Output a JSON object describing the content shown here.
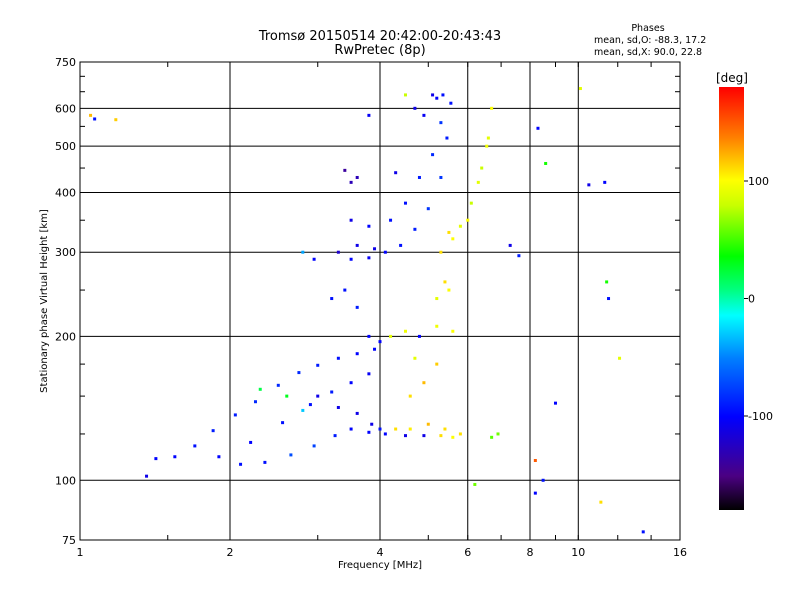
{
  "chart_data": {
    "type": "scatter",
    "title": "Tromsø 20150514 20:42:00-20:43:43",
    "subtitle": "RwPretec (8p)",
    "xlabel": "Frequency [MHz]",
    "ylabel": "Stationary phase Virtual Height [km]",
    "x_scale": "log",
    "y_scale": "log",
    "xlim": [
      1,
      16
    ],
    "ylim": [
      75,
      750
    ],
    "x_ticks": [
      "1",
      "2",
      "4",
      "6",
      "8",
      "10",
      "16"
    ],
    "x_tick_values": [
      1,
      2,
      4,
      6,
      8,
      10,
      16
    ],
    "y_ticks": [
      "75",
      "100",
      "200",
      "300",
      "400",
      "500",
      "600",
      "750"
    ],
    "y_tick_values": [
      75,
      100,
      200,
      300,
      400,
      500,
      600,
      750
    ],
    "grid": true,
    "stats_heading": "Phases",
    "stats_lines": [
      "mean, sd,O: -88.3, 17.2",
      "mean, sd,X:  90.0, 22.8"
    ],
    "colorbar": {
      "label": "[deg]",
      "range": [
        -180,
        180
      ],
      "ticks": [
        "100",
        "0",
        "-100"
      ],
      "tick_values": [
        100,
        0,
        -100
      ]
    },
    "series": [
      {
        "points": [
          [
            1.07,
            570,
            -95
          ],
          [
            1.05,
            580,
            120
          ],
          [
            1.18,
            568,
            115
          ],
          [
            1.36,
            102,
            -110
          ],
          [
            1.42,
            111,
            -100
          ],
          [
            1.55,
            112,
            -100
          ],
          [
            1.7,
            118,
            -95
          ],
          [
            1.85,
            127,
            -90
          ],
          [
            2.05,
            137,
            -90
          ],
          [
            2.25,
            146,
            -85
          ],
          [
            2.5,
            158,
            -85
          ],
          [
            2.75,
            168,
            -85
          ],
          [
            3.0,
            174,
            -90
          ],
          [
            3.3,
            180,
            -95
          ],
          [
            3.6,
            184,
            -100
          ],
          [
            3.9,
            188,
            -100
          ],
          [
            1.9,
            112,
            -100
          ],
          [
            2.1,
            108,
            -95
          ],
          [
            2.35,
            109,
            -95
          ],
          [
            2.65,
            113,
            -70
          ],
          [
            2.95,
            118,
            -75
          ],
          [
            3.25,
            124,
            -90
          ],
          [
            3.5,
            128,
            -100
          ],
          [
            3.8,
            126,
            -100
          ],
          [
            4.0,
            128,
            -95
          ],
          [
            2.2,
            120,
            -100
          ],
          [
            2.55,
            132,
            -95
          ],
          [
            2.9,
            144,
            -95
          ],
          [
            3.2,
            153,
            -90
          ],
          [
            3.5,
            160,
            -100
          ],
          [
            3.8,
            167,
            -105
          ],
          [
            3.0,
            150,
            -110
          ],
          [
            3.3,
            142,
            -110
          ],
          [
            3.6,
            138,
            -110
          ],
          [
            3.85,
            131,
            -110
          ],
          [
            4.1,
            125,
            -100
          ],
          [
            4.5,
            124,
            -110
          ],
          [
            4.9,
            124,
            -110
          ],
          [
            5.3,
            124,
            110
          ],
          [
            5.6,
            123,
            100
          ],
          [
            4.3,
            128,
            110
          ],
          [
            4.6,
            128,
            105
          ],
          [
            5.0,
            131,
            120
          ],
          [
            5.4,
            128,
            110
          ],
          [
            5.8,
            125,
            110
          ],
          [
            4.2,
            200,
            90
          ],
          [
            4.5,
            205,
            95
          ],
          [
            4.8,
            200,
            -100
          ],
          [
            5.2,
            210,
            95
          ],
          [
            5.6,
            205,
            100
          ],
          [
            4.6,
            150,
            110
          ],
          [
            4.9,
            160,
            120
          ],
          [
            5.2,
            175,
            115
          ],
          [
            4.7,
            180,
            90
          ],
          [
            5.2,
            240,
            90
          ],
          [
            5.5,
            250,
            100
          ],
          [
            5.4,
            260,
            110
          ],
          [
            3.5,
            290,
            -100
          ],
          [
            3.8,
            292,
            -105
          ],
          [
            4.1,
            300,
            -100
          ],
          [
            4.4,
            310,
            -95
          ],
          [
            4.7,
            335,
            -90
          ],
          [
            5.0,
            370,
            -80
          ],
          [
            5.3,
            430,
            -80
          ],
          [
            5.45,
            520,
            -90
          ],
          [
            5.55,
            615,
            -95
          ],
          [
            3.3,
            300,
            -120
          ],
          [
            3.6,
            310,
            -110
          ],
          [
            3.9,
            305,
            -110
          ],
          [
            3.4,
            445,
            -140
          ],
          [
            3.5,
            420,
            -130
          ],
          [
            3.6,
            430,
            -130
          ],
          [
            3.5,
            350,
            -110
          ],
          [
            3.8,
            340,
            -100
          ],
          [
            4.2,
            350,
            -95
          ],
          [
            4.5,
            380,
            -95
          ],
          [
            4.8,
            430,
            -90
          ],
          [
            5.1,
            480,
            -85
          ],
          [
            5.3,
            560,
            -80
          ],
          [
            4.7,
            600,
            -110
          ],
          [
            4.9,
            580,
            -105
          ],
          [
            5.1,
            640,
            -110
          ],
          [
            5.2,
            630,
            -100
          ],
          [
            5.35,
            640,
            -95
          ],
          [
            5.3,
            300,
            110
          ],
          [
            5.6,
            320,
            100
          ],
          [
            5.8,
            340,
            90
          ],
          [
            6.1,
            380,
            80
          ],
          [
            6.4,
            450,
            80
          ],
          [
            6.6,
            520,
            90
          ],
          [
            6.7,
            600,
            100
          ],
          [
            5.5,
            330,
            110
          ],
          [
            6.0,
            350,
            100
          ],
          [
            6.3,
            420,
            90
          ],
          [
            6.55,
            500,
            95
          ],
          [
            6.7,
            123,
            55
          ],
          [
            6.9,
            125,
            60
          ],
          [
            3.8,
            200,
            -100
          ],
          [
            4.0,
            195,
            -100
          ],
          [
            3.2,
            240,
            -95
          ],
          [
            3.4,
            250,
            -95
          ],
          [
            3.6,
            230,
            -90
          ],
          [
            2.3,
            155,
            20
          ],
          [
            2.6,
            150,
            30
          ],
          [
            2.8,
            140,
            -30
          ],
          [
            2.8,
            300,
            -40
          ],
          [
            2.95,
            290,
            -100
          ],
          [
            8.2,
            94,
            -100
          ],
          [
            8.5,
            100,
            -95
          ],
          [
            6.2,
            98,
            60
          ],
          [
            9.0,
            145,
            -100
          ],
          [
            8.3,
            545,
            -100
          ],
          [
            8.6,
            460,
            40
          ],
          [
            8.2,
            110,
            150
          ],
          [
            10.1,
            660,
            90
          ],
          [
            10.5,
            415,
            -110
          ],
          [
            11.4,
            260,
            40
          ],
          [
            11.5,
            240,
            -95
          ],
          [
            12.1,
            180,
            90
          ],
          [
            11.3,
            420,
            -100
          ],
          [
            11.1,
            90,
            110
          ],
          [
            13.5,
            78,
            -95
          ],
          [
            7.3,
            310,
            -110
          ],
          [
            7.6,
            295,
            -90
          ],
          [
            4.3,
            440,
            -110
          ],
          [
            3.8,
            580,
            -105
          ],
          [
            4.5,
            640,
            80
          ]
        ]
      }
    ]
  }
}
